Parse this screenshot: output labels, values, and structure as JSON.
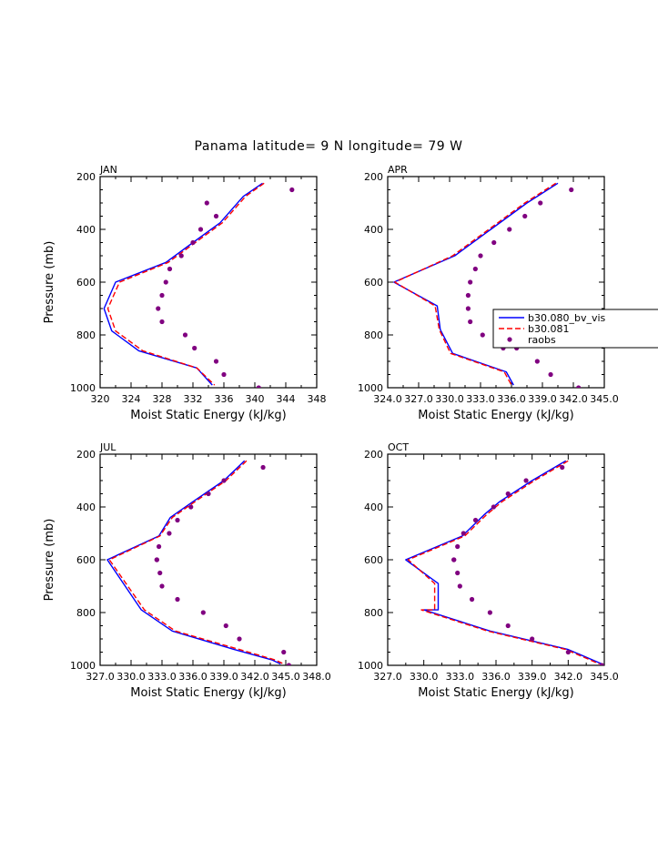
{
  "figure": {
    "title": "Panama  latitude= 9 N longitude= 79 W",
    "colors": {
      "axes": "#000000",
      "model1": "#0000ff",
      "model2": "#ff0000",
      "obs": "#800080"
    }
  },
  "legend": {
    "entries": [
      {
        "label": "b30.080_bv_vis",
        "style": "solid-line",
        "color": "#0000ff"
      },
      {
        "label": "b30.081",
        "style": "dashed-line",
        "color": "#ff0000"
      },
      {
        "label": "raobs",
        "style": "dot",
        "color": "#800080"
      }
    ]
  },
  "chart_data": [
    {
      "type": "line",
      "panel_label": "JAN",
      "xlabel": "Moist Static Energy (kJ/kg)",
      "ylabel": "Pressure (mb)",
      "xlim": [
        320,
        348
      ],
      "ylim": [
        1000,
        200
      ],
      "xticks": [
        320,
        324,
        328,
        332,
        336,
        340,
        344,
        348
      ],
      "xtick_labels": [
        "320",
        "324",
        "328",
        "332",
        "336",
        "340",
        "344",
        "348"
      ],
      "yticks": [
        200,
        400,
        600,
        800,
        1000
      ],
      "ytick_labels": [
        "200",
        "400",
        "600",
        "800",
        "1000"
      ],
      "series": [
        {
          "name": "b30.080_bv_vis",
          "style": "solid",
          "color": "#0000ff",
          "x": [
            341.0,
            338.5,
            335.5,
            332.0,
            328.5,
            322.0,
            320.5,
            321.5,
            325.0,
            332.5,
            334.5
          ],
          "y": [
            225,
            275,
            375,
            450,
            525,
            600,
            700,
            785,
            860,
            925,
            990
          ]
        },
        {
          "name": "b30.081",
          "style": "dashed",
          "color": "#ff0000",
          "x": [
            341.2,
            338.8,
            335.8,
            332.3,
            328.8,
            322.5,
            321.0,
            322.0,
            325.5,
            332.5,
            334.8
          ],
          "y": [
            225,
            275,
            375,
            450,
            525,
            600,
            700,
            785,
            860,
            925,
            990
          ]
        },
        {
          "name": "raobs",
          "style": "markers",
          "color": "#800080",
          "x": [
            344.8,
            333.8,
            335.0,
            333.0,
            332.0,
            330.5,
            329.0,
            328.5,
            328.0,
            327.5,
            328.0,
            331.0,
            332.2,
            335.0,
            336.0,
            340.5
          ],
          "y": [
            250,
            300,
            350,
            400,
            450,
            500,
            550,
            600,
            650,
            700,
            750,
            800,
            850,
            900,
            950,
            1000
          ]
        }
      ]
    },
    {
      "type": "line",
      "panel_label": "APR",
      "xlabel": "Moist Static Energy (kJ/kg)",
      "ylabel": "",
      "xlim": [
        324.0,
        345.0
      ],
      "ylim": [
        1000,
        200
      ],
      "xticks": [
        324.0,
        327.0,
        330.0,
        333.0,
        336.0,
        339.0,
        342.0,
        345.0
      ],
      "xtick_labels": [
        "324.0",
        "327.0",
        "330.0",
        "333.0",
        "336.0",
        "339.0",
        "342.0",
        "345.0"
      ],
      "yticks": [
        200,
        400,
        600,
        800,
        1000
      ],
      "ytick_labels": [
        "200",
        "400",
        "600",
        "800",
        "1000"
      ],
      "series": [
        {
          "name": "b30.080_bv_vis",
          "style": "solid",
          "color": "#0000ff",
          "x": [
            340.5,
            337.5,
            334.0,
            330.5,
            324.6,
            328.8,
            329.1,
            330.3,
            335.5,
            336.2
          ],
          "y": [
            225,
            300,
            400,
            500,
            600,
            690,
            780,
            870,
            940,
            990
          ]
        },
        {
          "name": "b30.081",
          "style": "dashed",
          "color": "#ff0000",
          "x": [
            340.3,
            337.3,
            333.8,
            330.3,
            324.7,
            328.6,
            329.0,
            330.1,
            335.3,
            336.0
          ],
          "y": [
            225,
            300,
            400,
            500,
            600,
            690,
            780,
            870,
            940,
            990
          ]
        },
        {
          "name": "raobs",
          "style": "markers",
          "color": "#800080",
          "x": [
            341.8,
            338.8,
            337.3,
            335.8,
            334.3,
            333.0,
            332.5,
            332.0,
            331.8,
            331.8,
            332.0,
            333.2,
            335.2,
            336.5,
            338.5,
            339.8,
            342.5
          ],
          "y": [
            250,
            300,
            350,
            400,
            450,
            500,
            550,
            600,
            650,
            700,
            750,
            800,
            850,
            850,
            900,
            950,
            1000
          ]
        }
      ]
    },
    {
      "type": "line",
      "panel_label": "JUL",
      "xlabel": "Moist Static Energy (kJ/kg)",
      "ylabel": "Pressure (mb)",
      "xlim": [
        327.0,
        348.0
      ],
      "ylim": [
        1000,
        200
      ],
      "xticks": [
        327.0,
        330.0,
        333.0,
        336.0,
        339.0,
        342.0,
        345.0,
        348.0
      ],
      "xtick_labels": [
        "327.0",
        "330.0",
        "333.0",
        "336.0",
        "339.0",
        "342.0",
        "345.0",
        "348.0"
      ],
      "yticks": [
        200,
        400,
        600,
        800,
        1000
      ],
      "ytick_labels": [
        "200",
        "400",
        "600",
        "800",
        "1000"
      ],
      "series": [
        {
          "name": "b30.080_bv_vis",
          "style": "solid",
          "color": "#0000ff",
          "x": [
            341.0,
            339.0,
            336.0,
            333.8,
            332.7,
            327.7,
            331.0,
            334.0,
            340.0,
            343.7,
            344.5
          ],
          "y": [
            225,
            300,
            380,
            440,
            510,
            600,
            790,
            870,
            940,
            980,
            995
          ]
        },
        {
          "name": "b30.081",
          "style": "dashed",
          "color": "#ff0000",
          "x": [
            341.2,
            339.2,
            336.2,
            334.0,
            332.8,
            327.9,
            331.3,
            334.3,
            340.5,
            344.0,
            344.8
          ],
          "y": [
            225,
            300,
            380,
            440,
            510,
            600,
            790,
            870,
            940,
            980,
            995
          ]
        },
        {
          "name": "raobs",
          "style": "markers",
          "color": "#800080",
          "x": [
            342.8,
            339.0,
            337.5,
            335.8,
            334.5,
            333.7,
            332.7,
            332.5,
            332.5,
            332.8,
            333.0,
            334.5,
            337.0,
            339.2,
            340.5,
            344.8,
            345.3
          ],
          "y": [
            250,
            300,
            350,
            400,
            450,
            500,
            550,
            600,
            600,
            650,
            700,
            750,
            800,
            850,
            900,
            950,
            1000
          ]
        }
      ]
    },
    {
      "type": "line",
      "panel_label": "OCT",
      "xlabel": "Moist Static Energy (kJ/kg)",
      "ylabel": "",
      "xlim": [
        327.0,
        345.0
      ],
      "ylim": [
        1000,
        200
      ],
      "xticks": [
        327.0,
        330.0,
        333.0,
        336.0,
        339.0,
        342.0,
        345.0
      ],
      "xtick_labels": [
        "327.0",
        "330.0",
        "333.0",
        "336.0",
        "339.0",
        "342.0",
        "345.0"
      ],
      "yticks": [
        200,
        400,
        600,
        800,
        1000
      ],
      "ytick_labels": [
        "200",
        "400",
        "600",
        "800",
        "1000"
      ],
      "series": [
        {
          "name": "b30.080_bv_vis",
          "style": "solid",
          "color": "#0000ff",
          "x": [
            341.8,
            339.0,
            336.3,
            335.0,
            333.2,
            328.5,
            331.2,
            331.2,
            330.0,
            335.5,
            342.0,
            344.8
          ],
          "y": [
            225,
            300,
            380,
            430,
            510,
            600,
            690,
            790,
            790,
            870,
            940,
            995
          ]
        },
        {
          "name": "b30.081",
          "style": "dashed",
          "color": "#ff0000",
          "x": [
            342.0,
            339.2,
            336.5,
            335.2,
            333.4,
            328.7,
            330.9,
            330.9,
            329.8,
            335.3,
            341.8,
            344.6
          ],
          "y": [
            225,
            300,
            380,
            430,
            510,
            600,
            690,
            790,
            790,
            870,
            940,
            995
          ]
        },
        {
          "name": "raobs",
          "style": "markers",
          "color": "#800080",
          "x": [
            341.5,
            338.5,
            337.0,
            335.8,
            334.3,
            333.3,
            332.8,
            332.5,
            332.5,
            332.8,
            333.0,
            334.0,
            335.5,
            337.0,
            339.0,
            342.0,
            344.8
          ],
          "y": [
            250,
            300,
            350,
            400,
            450,
            500,
            550,
            600,
            600,
            650,
            700,
            750,
            800,
            850,
            900,
            950,
            1000
          ]
        }
      ]
    }
  ]
}
